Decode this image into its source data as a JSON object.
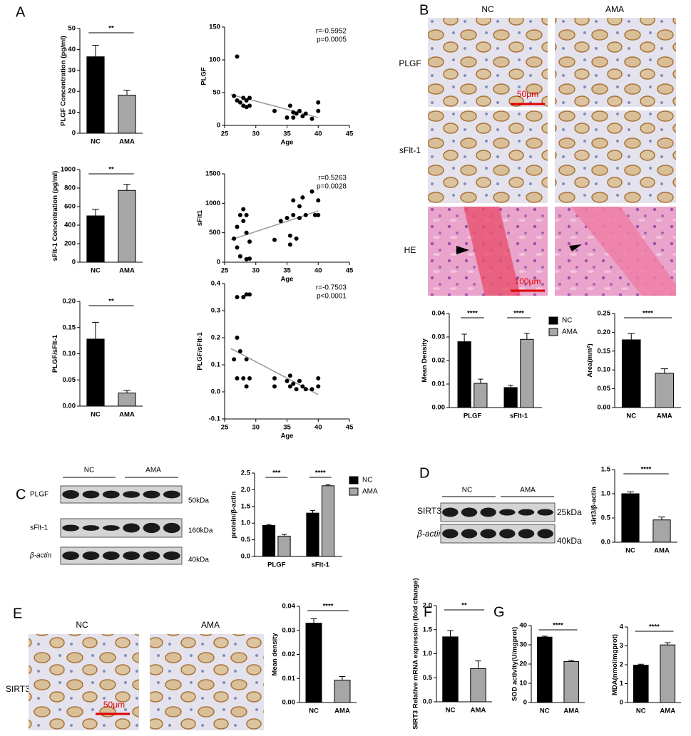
{
  "panels": [
    "A",
    "B",
    "C",
    "D",
    "E",
    "F",
    "G"
  ],
  "ihc_b": {
    "columns": [
      "NC",
      "AMA"
    ],
    "rows": [
      "PLGF",
      "sFlt-1",
      "HE"
    ],
    "scale_bars": [
      "50μm",
      "100μm"
    ]
  },
  "western_c": {
    "groups": [
      "NC",
      "AMA"
    ],
    "rows": [
      "PLGF",
      "sFlt-1",
      "β-actin"
    ],
    "sizes": [
      "50kDa",
      "160kDa",
      "40kDa"
    ]
  },
  "western_d": {
    "groups": [
      "NC",
      "AMA"
    ],
    "rows": [
      "SIRT3",
      "β-actin"
    ],
    "sizes": [
      "25kDa",
      "40kDa"
    ]
  },
  "ihc_e": {
    "columns": [
      "NC",
      "AMA"
    ],
    "row": "SIRT3",
    "scale_bar": "50μm"
  },
  "chart_data": [
    {
      "type": "bar",
      "ylabel": "PLGF Concentration (pg/ml)",
      "categories": [
        "NC",
        "AMA"
      ],
      "values": [
        36.5,
        18.2
      ],
      "errors": [
        5.5,
        2.3
      ],
      "colors": [
        "#000000",
        "#a6a6a6"
      ],
      "ylim": [
        0,
        50
      ],
      "yticks": [
        0,
        10,
        20,
        30,
        40,
        50
      ],
      "significance": [
        "**"
      ]
    },
    {
      "type": "scatter",
      "ylabel": "PLGF",
      "xlabel": "Age",
      "x": [
        26.5,
        27,
        27,
        27.5,
        28,
        28,
        28.5,
        28.5,
        29,
        29,
        33,
        35,
        35.5,
        36,
        36,
        36.5,
        37,
        37.5,
        38,
        39,
        40,
        40
      ],
      "y": [
        45,
        105,
        38,
        35,
        42,
        30,
        38,
        28,
        42,
        30,
        22,
        12,
        30,
        20,
        12,
        18,
        22,
        14,
        18,
        10,
        22,
        35
      ],
      "fit": {
        "x": [
          26,
          40
        ],
        "y": [
          47,
          12
        ]
      },
      "xlim": [
        25,
        45
      ],
      "xticks": [
        25,
        30,
        35,
        40,
        45
      ],
      "ylim": [
        0,
        150
      ],
      "yticks": [
        0,
        50,
        100,
        150
      ],
      "annotations": [
        "r=-0.5952",
        "p=0.0005"
      ]
    },
    {
      "type": "bar",
      "ylabel": "sFlt-1 Concentration (pg/ml)",
      "categories": [
        "NC",
        "AMA"
      ],
      "values": [
        500,
        775
      ],
      "errors": [
        70,
        65
      ],
      "colors": [
        "#000000",
        "#a6a6a6"
      ],
      "ylim": [
        0,
        1000
      ],
      "yticks": [
        0,
        200,
        400,
        600,
        800,
        1000
      ],
      "significance": [
        "**"
      ]
    },
    {
      "type": "scatter",
      "ylabel": "sFlt1",
      "xlabel": "Age",
      "x": [
        26.5,
        27,
        27.5,
        27,
        27.5,
        28,
        28,
        28.5,
        28.5,
        28.5,
        29,
        29,
        33,
        34,
        35,
        35.5,
        35.5,
        36,
        36,
        36.5,
        37,
        37,
        37.5,
        38,
        39,
        39.5,
        40,
        40
      ],
      "y": [
        400,
        600,
        800,
        250,
        100,
        700,
        900,
        800,
        500,
        50,
        60,
        350,
        380,
        700,
        750,
        450,
        300,
        800,
        1050,
        400,
        950,
        750,
        1100,
        800,
        1200,
        800,
        1050,
        800
      ],
      "fit": {
        "x": [
          26,
          40
        ],
        "y": [
          380,
          870
        ]
      },
      "xlim": [
        25,
        45
      ],
      "xticks": [
        25,
        30,
        35,
        40,
        45
      ],
      "ylim": [
        0,
        1500
      ],
      "yticks": [
        0,
        500,
        1000,
        1500
      ],
      "annotations": [
        "r=0.5263",
        "p=0.0028"
      ]
    },
    {
      "type": "bar",
      "ylabel": "PLGF/sFlt-1",
      "categories": [
        "NC",
        "AMA"
      ],
      "values": [
        0.128,
        0.025
      ],
      "errors": [
        0.032,
        0.005
      ],
      "colors": [
        "#000000",
        "#a6a6a6"
      ],
      "ylim": [
        0,
        0.2
      ],
      "yticks": [
        {
          "value": 0,
          "label": "0.00"
        },
        0.05,
        {
          "value": 0.1,
          "label": "0.10"
        },
        0.15,
        {
          "value": 0.2,
          "label": "0.20"
        }
      ],
      "significance": [
        "**"
      ]
    },
    {
      "type": "scatter",
      "ylabel": "PLGF/sFlt-1",
      "xlabel": "Age",
      "x": [
        26.5,
        27,
        27,
        27,
        27.5,
        28,
        28,
        28.5,
        28.5,
        28.5,
        29,
        29,
        33,
        33,
        35,
        35.5,
        35.5,
        36,
        36.5,
        37,
        37.5,
        38,
        39,
        40,
        40
      ],
      "y": [
        0.12,
        0.35,
        0.2,
        0.05,
        0.15,
        0.35,
        0.05,
        0.36,
        0.12,
        0.02,
        0.36,
        0.05,
        0.05,
        0.02,
        0.04,
        0.02,
        0.06,
        0.03,
        0.01,
        0.04,
        0.02,
        0.01,
        0.01,
        0.05,
        0.02
      ],
      "fit": {
        "x": [
          26,
          40
        ],
        "y": [
          0.16,
          -0.01
        ]
      },
      "xlim": [
        25,
        45
      ],
      "xticks": [
        25,
        30,
        35,
        40,
        45
      ],
      "ylim": [
        -0.1,
        0.4
      ],
      "yticks": [
        -0.1,
        {
          "value": 0,
          "label": "0.0"
        },
        0.1,
        0.2,
        0.3,
        0.4
      ],
      "annotations": [
        "r=-0.7503",
        "p<0.0001"
      ]
    },
    {
      "type": "bar",
      "ylabel": "Mean Density",
      "categories": [
        "PLGF",
        "sFlt-1"
      ],
      "series": [
        {
          "name": "NC",
          "color": "#000000",
          "values": [
            0.028,
            0.0085
          ],
          "errors": [
            0.0032,
            0.001
          ]
        },
        {
          "name": "AMA",
          "color": "#a6a6a6",
          "values": [
            0.0103,
            0.029
          ],
          "errors": [
            0.0018,
            0.0025
          ]
        }
      ],
      "ylim": [
        0,
        0.04
      ],
      "yticks": [
        {
          "value": 0,
          "label": "0.00"
        },
        0.01,
        0.02,
        0.03,
        0.04
      ],
      "significance": [
        "****",
        "****"
      ]
    },
    {
      "type": "bar",
      "ylabel": "Area(mm²)",
      "categories": [
        "NC",
        "AMA"
      ],
      "values": [
        0.18,
        0.091
      ],
      "errors": [
        0.017,
        0.012
      ],
      "colors": [
        "#000000",
        "#a6a6a6"
      ],
      "ylim": [
        0,
        0.25
      ],
      "yticks": [
        {
          "value": 0,
          "label": "0.00"
        },
        0.05,
        {
          "value": 0.1,
          "label": "0.10"
        },
        0.15,
        {
          "value": 0.2,
          "label": "0.20"
        },
        0.25
      ],
      "significance": [
        "****"
      ]
    },
    {
      "type": "bar",
      "ylabel": "protein/β-actin",
      "categories": [
        "PLGF",
        "sFlt-1"
      ],
      "series": [
        {
          "name": "NC",
          "color": "#000000",
          "values": [
            0.93,
            1.3
          ],
          "errors": [
            0.03,
            0.08
          ]
        },
        {
          "name": "AMA",
          "color": "#a6a6a6",
          "values": [
            0.61,
            2.12
          ],
          "errors": [
            0.05,
            0.03
          ]
        }
      ],
      "ylim": [
        0,
        2.5
      ],
      "yticks": [
        {
          "value": 0,
          "label": "0.0"
        },
        0.5,
        {
          "value": 1,
          "label": "1.0"
        },
        1.5,
        {
          "value": 2,
          "label": "2.0"
        },
        2.5
      ],
      "significance": [
        "***",
        "****"
      ]
    },
    {
      "type": "bar",
      "ylabel": "sirt3/β-actin",
      "categories": [
        "NC",
        "AMA"
      ],
      "values": [
        1.0,
        0.46
      ],
      "errors": [
        0.04,
        0.06
      ],
      "colors": [
        "#000000",
        "#a6a6a6"
      ],
      "ylim": [
        0,
        1.5
      ],
      "yticks": [
        {
          "value": 0,
          "label": "0.0"
        },
        0.5,
        {
          "value": 1,
          "label": "1.0"
        },
        1.5
      ],
      "significance": [
        "****"
      ]
    },
    {
      "type": "bar",
      "ylabel": "Mean density",
      "categories": [
        "NC",
        "AMA"
      ],
      "values": [
        0.033,
        0.0093
      ],
      "errors": [
        0.0018,
        0.0015
      ],
      "colors": [
        "#000000",
        "#a6a6a6"
      ],
      "ylim": [
        0,
        0.04
      ],
      "yticks": [
        {
          "value": 0,
          "label": "0.00"
        },
        0.01,
        0.02,
        0.03,
        0.04
      ],
      "significance": [
        "****"
      ]
    },
    {
      "type": "bar",
      "ylabel": "SIRT3 Relative mRNA expression (fold change)",
      "categories": [
        "NC",
        "AMA"
      ],
      "values": [
        1.35,
        0.69
      ],
      "errors": [
        0.13,
        0.16
      ],
      "colors": [
        "#000000",
        "#a6a6a6"
      ],
      "ylim": [
        0,
        2
      ],
      "yticks": [
        {
          "value": 0,
          "label": "0.0"
        },
        0.5,
        {
          "value": 1,
          "label": "1.0"
        },
        1.5,
        {
          "value": 2,
          "label": "2.0"
        }
      ],
      "significance": [
        "**"
      ]
    },
    {
      "type": "bar",
      "ylabel": "SOD activity(U/mgprot)",
      "categories": [
        "NC",
        "AMA"
      ],
      "values": [
        34,
        21.3
      ],
      "errors": [
        0.5,
        0.6
      ],
      "colors": [
        "#000000",
        "#a6a6a6"
      ],
      "ylim": [
        0,
        40
      ],
      "yticks": [
        0,
        10,
        20,
        30,
        40
      ],
      "significance": [
        "****"
      ]
    },
    {
      "type": "bar",
      "ylabel": "MDA(nmol/mgprot)",
      "categories": [
        "NC",
        "AMA"
      ],
      "values": [
        1.98,
        3.05
      ],
      "errors": [
        0.05,
        0.12
      ],
      "colors": [
        "#000000",
        "#a6a6a6"
      ],
      "ylim": [
        0,
        4
      ],
      "yticks": [
        0,
        1,
        2,
        3,
        4
      ],
      "significance": [
        "****"
      ]
    }
  ]
}
